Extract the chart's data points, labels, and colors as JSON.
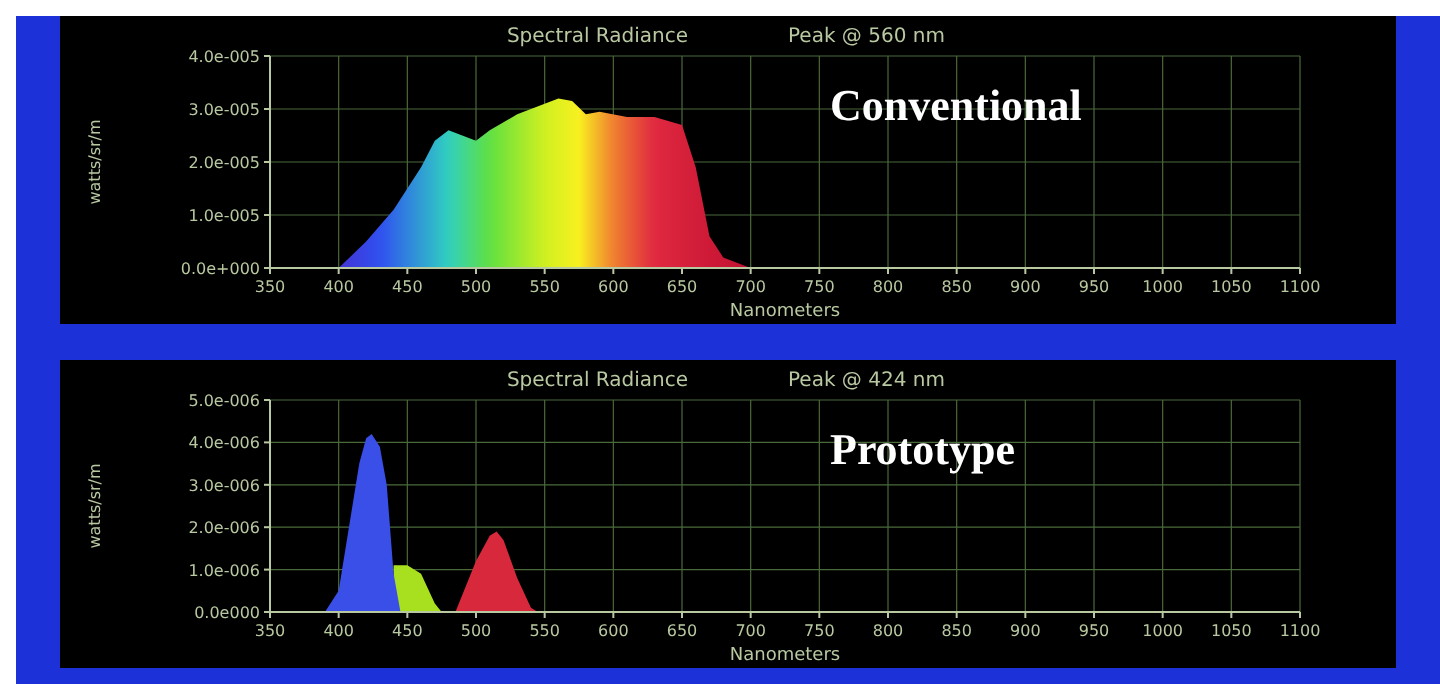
{
  "chart_data": [
    {
      "type": "area",
      "title": "Spectral Radiance",
      "subtitle": "Peak @ 560 nm",
      "xlabel": "Nanometers",
      "ylabel": "watts/sr/m",
      "annotations": [
        "Conventional"
      ],
      "grid": true,
      "xlim": [
        350,
        1100
      ],
      "xticks": [
        350,
        400,
        450,
        500,
        550,
        600,
        650,
        700,
        750,
        800,
        850,
        900,
        950,
        1000,
        1050,
        1100
      ],
      "ylim": [
        0,
        4e-05
      ],
      "yticks": [
        {
          "value": 0,
          "label": "0.0e+000"
        },
        {
          "value": 1e-05,
          "label": "1.0e-005"
        },
        {
          "value": 2e-05,
          "label": "2.0e-005"
        },
        {
          "value": 3e-05,
          "label": "3.0e-005"
        },
        {
          "value": 4e-05,
          "label": "4.0e-005"
        }
      ],
      "series": [
        {
          "x": [
            380,
            400,
            420,
            440,
            460,
            470,
            480,
            490,
            500,
            510,
            530,
            550,
            560,
            570,
            580,
            590,
            610,
            630,
            650,
            660,
            670,
            680,
            700,
            750,
            800,
            900,
            1000,
            1100
          ],
          "values": [
            0,
            0,
            5e-06,
            1.1e-05,
            1.9e-05,
            2.4e-05,
            2.6e-05,
            2.5e-05,
            2.4e-05,
            2.6e-05,
            2.9e-05,
            3.1e-05,
            3.2e-05,
            3.15e-05,
            2.9e-05,
            2.95e-05,
            2.85e-05,
            2.85e-05,
            2.7e-05,
            1.9e-05,
            6e-06,
            2e-06,
            0,
            0,
            0,
            0,
            0,
            0
          ]
        }
      ]
    },
    {
      "type": "area",
      "title": "Spectral Radiance",
      "subtitle": "Peak @ 424 nm",
      "xlabel": "Nanometers",
      "ylabel": "watts/sr/m",
      "annotations": [
        "Prototype"
      ],
      "grid": true,
      "xlim": [
        350,
        1100
      ],
      "xticks": [
        350,
        400,
        450,
        500,
        550,
        600,
        650,
        700,
        750,
        800,
        850,
        900,
        950,
        1000,
        1050,
        1100
      ],
      "ylim": [
        0,
        5e-06
      ],
      "yticks": [
        {
          "value": 0,
          "label": "0.0e000"
        },
        {
          "value": 1e-06,
          "label": "1.0e-006"
        },
        {
          "value": 2e-06,
          "label": "2.0e-006"
        },
        {
          "value": 3e-06,
          "label": "3.0e-006"
        },
        {
          "value": 4e-06,
          "label": "4.0e-006"
        },
        {
          "value": 5e-06,
          "label": "5.0e-006"
        }
      ],
      "series": [
        {
          "color": "#a8e020",
          "x": [
            440,
            450,
            460,
            470,
            475
          ],
          "values": [
            1.1e-06,
            1.1e-06,
            9e-07,
            2e-07,
            0
          ]
        },
        {
          "color": "#3a4ee8",
          "x": [
            390,
            400,
            410,
            415,
            420,
            424,
            430,
            435,
            440,
            445
          ],
          "values": [
            0,
            5e-07,
            2.5e-06,
            3.5e-06,
            4.1e-06,
            4.2e-06,
            3.9e-06,
            3e-06,
            9e-07,
            0
          ]
        },
        {
          "color": "#d8283c",
          "x": [
            485,
            490,
            500,
            510,
            515,
            520,
            530,
            540,
            545
          ],
          "values": [
            0,
            4e-07,
            1.2e-06,
            1.8e-06,
            1.9e-06,
            1.7e-06,
            8e-07,
            1e-07,
            0
          ]
        }
      ]
    }
  ]
}
